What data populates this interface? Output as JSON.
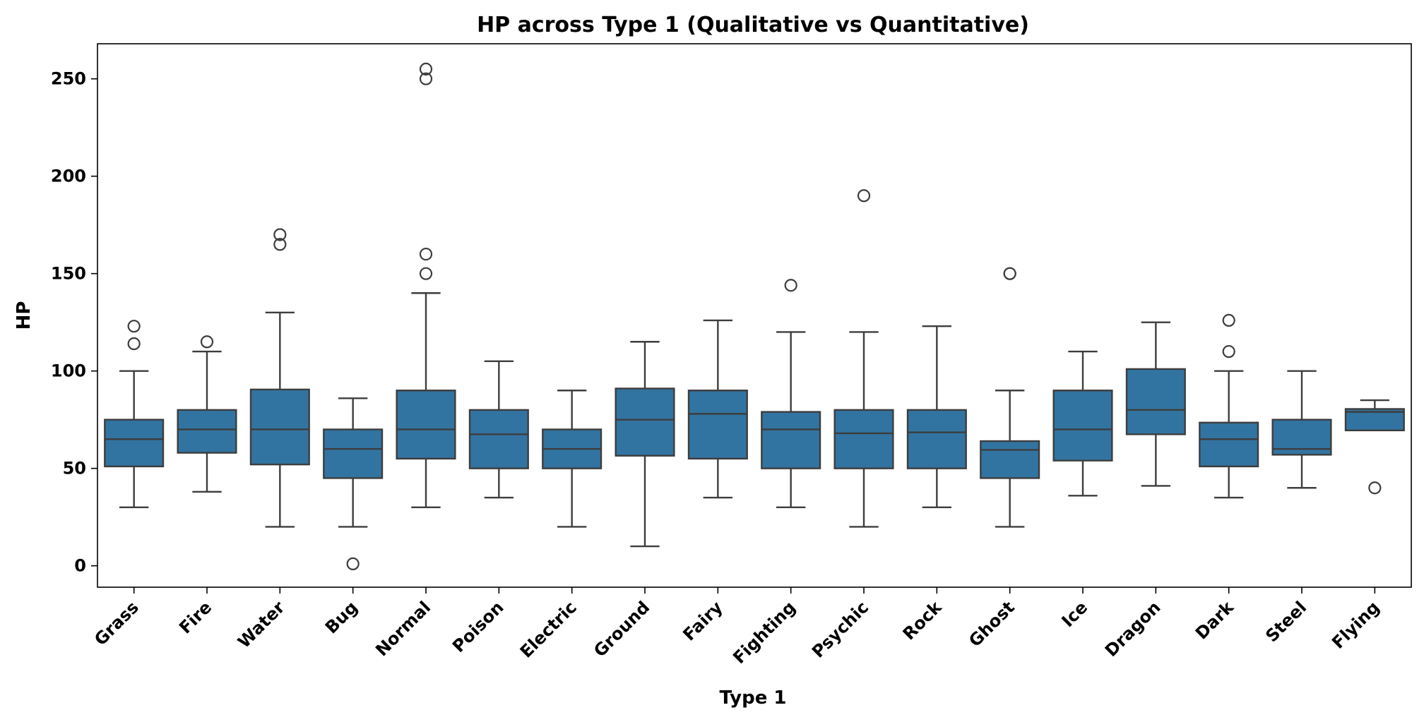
{
  "chart_data": {
    "type": "box",
    "title": "HP across Type 1 (Qualitative vs Quantitative)",
    "xlabel": "Type 1",
    "ylabel": "HP",
    "ylim": [
      -11,
      268
    ],
    "yticks": [
      0,
      50,
      100,
      150,
      200,
      250
    ],
    "grid": false,
    "colors": {
      "box_fill": "#3274a1",
      "box_edge": "#3d3d3d",
      "axes": "#000000"
    },
    "categories": [
      "Grass",
      "Fire",
      "Water",
      "Bug",
      "Normal",
      "Poison",
      "Electric",
      "Ground",
      "Fairy",
      "Fighting",
      "Psychic",
      "Rock",
      "Ghost",
      "Ice",
      "Dragon",
      "Dark",
      "Steel",
      "Flying"
    ],
    "boxes": [
      {
        "category": "Grass",
        "whisker_low": 30,
        "q1": 51,
        "median": 65,
        "q3": 75,
        "whisker_high": 100,
        "outliers": [
          114,
          123
        ]
      },
      {
        "category": "Fire",
        "whisker_low": 38,
        "q1": 58,
        "median": 70,
        "q3": 80,
        "whisker_high": 110,
        "outliers": [
          115
        ]
      },
      {
        "category": "Water",
        "whisker_low": 20,
        "q1": 52,
        "median": 70,
        "q3": 90.5,
        "whisker_high": 130,
        "outliers": [
          165,
          170
        ]
      },
      {
        "category": "Bug",
        "whisker_low": 20,
        "q1": 45,
        "median": 60,
        "q3": 70,
        "whisker_high": 86,
        "outliers": [
          1
        ]
      },
      {
        "category": "Normal",
        "whisker_low": 30,
        "q1": 55,
        "median": 70,
        "q3": 90,
        "whisker_high": 140,
        "outliers": [
          150,
          160,
          250,
          255
        ]
      },
      {
        "category": "Poison",
        "whisker_low": 35,
        "q1": 50,
        "median": 67.5,
        "q3": 80,
        "whisker_high": 105,
        "outliers": []
      },
      {
        "category": "Electric",
        "whisker_low": 20,
        "q1": 50,
        "median": 60,
        "q3": 70,
        "whisker_high": 90,
        "outliers": []
      },
      {
        "category": "Ground",
        "whisker_low": 10,
        "q1": 56.5,
        "median": 75,
        "q3": 91,
        "whisker_high": 115,
        "outliers": []
      },
      {
        "category": "Fairy",
        "whisker_low": 35,
        "q1": 55,
        "median": 78,
        "q3": 90,
        "whisker_high": 126,
        "outliers": []
      },
      {
        "category": "Fighting",
        "whisker_low": 30,
        "q1": 50,
        "median": 70,
        "q3": 79,
        "whisker_high": 120,
        "outliers": [
          144
        ]
      },
      {
        "category": "Psychic",
        "whisker_low": 20,
        "q1": 50,
        "median": 68,
        "q3": 80,
        "whisker_high": 120,
        "outliers": [
          190
        ]
      },
      {
        "category": "Rock",
        "whisker_low": 30,
        "q1": 50,
        "median": 68.5,
        "q3": 80,
        "whisker_high": 123,
        "outliers": []
      },
      {
        "category": "Ghost",
        "whisker_low": 20,
        "q1": 45,
        "median": 59.5,
        "q3": 64,
        "whisker_high": 90,
        "outliers": [
          150,
          150
        ]
      },
      {
        "category": "Ice",
        "whisker_low": 36,
        "q1": 54,
        "median": 70,
        "q3": 90,
        "whisker_high": 110,
        "outliers": []
      },
      {
        "category": "Dragon",
        "whisker_low": 41,
        "q1": 67.5,
        "median": 80,
        "q3": 101,
        "whisker_high": 125,
        "outliers": []
      },
      {
        "category": "Dark",
        "whisker_low": 35,
        "q1": 51,
        "median": 65,
        "q3": 73.5,
        "whisker_high": 100,
        "outliers": [
          110,
          126
        ]
      },
      {
        "category": "Steel",
        "whisker_low": 40,
        "q1": 57,
        "median": 60,
        "q3": 75,
        "whisker_high": 100,
        "outliers": []
      },
      {
        "category": "Flying",
        "whisker_low": 69.5,
        "q1": 69.5,
        "median": 79,
        "q3": 80.5,
        "whisker_high": 85,
        "outliers": [
          40
        ]
      }
    ]
  }
}
